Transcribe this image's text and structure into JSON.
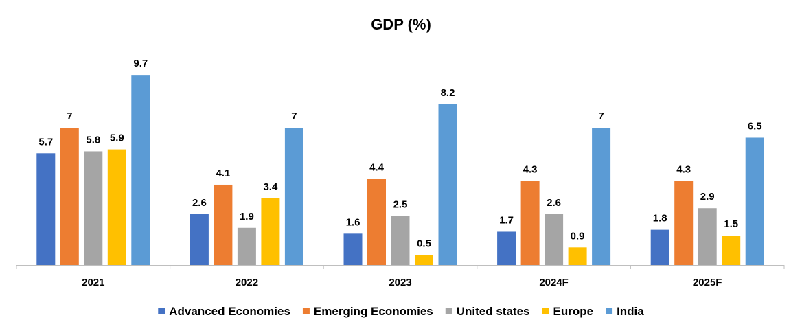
{
  "chart_data": {
    "type": "bar",
    "title": "GDP (%)",
    "xlabel": "",
    "ylabel": "",
    "ylim": [
      0,
      10.3
    ],
    "grid": false,
    "legend_position": "bottom",
    "categories": [
      "2021",
      "2022",
      "2023",
      "2024F",
      "2025F"
    ],
    "series": [
      {
        "name": "Advanced Economies",
        "color": "#4472C4",
        "values": [
          5.7,
          2.6,
          1.6,
          1.7,
          1.8
        ]
      },
      {
        "name": "Emerging Economies",
        "color": "#ED7D31",
        "values": [
          7,
          4.1,
          4.4,
          4.3,
          4.3
        ]
      },
      {
        "name": "United states",
        "color": "#A5A5A5",
        "values": [
          5.8,
          1.9,
          2.5,
          2.6,
          2.9
        ]
      },
      {
        "name": "Europe",
        "color": "#FFC000",
        "values": [
          5.9,
          3.4,
          0.5,
          0.9,
          1.5
        ]
      },
      {
        "name": "India",
        "color": "#5B9BD5",
        "values": [
          9.7,
          7,
          8.2,
          7,
          6.5
        ]
      }
    ]
  }
}
